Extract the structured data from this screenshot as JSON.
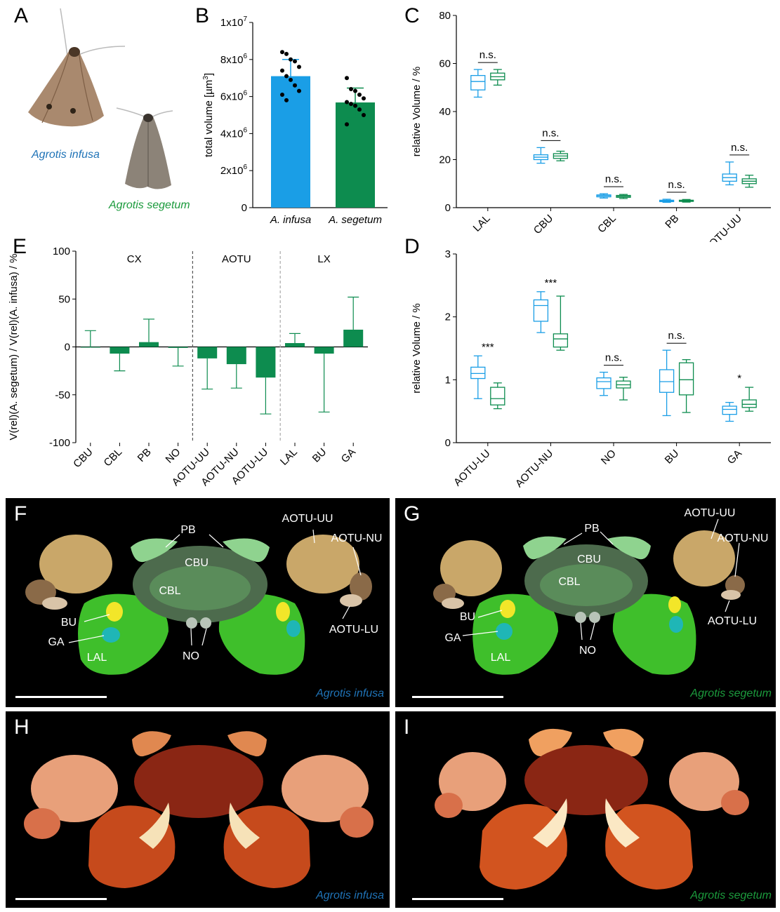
{
  "panels": {
    "A": {
      "letter": "A",
      "species_1": "Agrotis infusa",
      "species_2": "Agrotis segetum"
    },
    "B": {
      "letter": "B"
    },
    "C": {
      "letter": "C"
    },
    "D": {
      "letter": "D"
    },
    "E": {
      "letter": "E",
      "groups": [
        "CX",
        "AOTU",
        "LX"
      ]
    },
    "F": {
      "letter": "F",
      "species": "Agrotis infusa",
      "labels": {
        "pb": "PB",
        "cbu": "CBU",
        "cbl": "CBL",
        "aotu_uu": "AOTU-UU",
        "aotu_nu": "AOTU-NU",
        "aotu_lu": "AOTU-LU",
        "bu": "BU",
        "ga": "GA",
        "lal": "LAL",
        "no": "NO"
      }
    },
    "G": {
      "letter": "G",
      "species": "Agrotis segetum",
      "labels": {
        "pb": "PB",
        "cbu": "CBU",
        "cbl": "CBL",
        "aotu_uu": "AOTU-UU",
        "aotu_nu": "AOTU-NU",
        "aotu_lu": "AOTU-LU",
        "bu": "BU",
        "ga": "GA",
        "lal": "LAL",
        "no": "NO"
      }
    },
    "H": {
      "letter": "H",
      "species": "Agrotis infusa"
    },
    "I": {
      "letter": "I",
      "species": "Agrotis segetum"
    }
  },
  "colors": {
    "infusa": "#1a9ee6",
    "segetum": "#0d8c4f",
    "infusa_text": "#1f73b7",
    "segetum_text": "#1b9a3c"
  },
  "chart_data": [
    {
      "panel": "B",
      "type": "bar",
      "categories": [
        "A. infusa",
        "A. segetum"
      ],
      "values": [
        7100000,
        5680000
      ],
      "errors": [
        900000,
        780000
      ],
      "points": [
        [
          8400000,
          8300000,
          8000000,
          7900000,
          7600000,
          7400000,
          7100000,
          6900000,
          6600000,
          6300000,
          6100000,
          5800000
        ],
        [
          7000000,
          6400000,
          6300000,
          6100000,
          5900000,
          5700000,
          5600000,
          5500000,
          5300000,
          5000000,
          4500000
        ]
      ],
      "ylabel_main": "total volume [µm",
      "ylabel_sup": "3",
      "ylabel_end": "]",
      "ylim": [
        0,
        10000000
      ],
      "yticks": [
        {
          "v": 0,
          "base": "0",
          "exp": ""
        },
        {
          "v": 2000000,
          "base": "2x10",
          "exp": "6"
        },
        {
          "v": 4000000,
          "base": "4x10",
          "exp": "6"
        },
        {
          "v": 6000000,
          "base": "6x10",
          "exp": "6"
        },
        {
          "v": 8000000,
          "base": "8x10",
          "exp": "6"
        },
        {
          "v": 10000000,
          "base": "1x10",
          "exp": "7"
        }
      ]
    },
    {
      "panel": "C",
      "type": "box",
      "categories": [
        "LAL",
        "CBU",
        "CBL",
        "PB",
        "AOTU-UU"
      ],
      "series": [
        {
          "name": "A. infusa",
          "boxes": [
            [
              46,
              49,
              52.5,
              55,
              57.5
            ],
            [
              18.5,
              20,
              21,
              22,
              25
            ],
            [
              4,
              4.5,
              5,
              5.3,
              5.8
            ],
            [
              2.2,
              2.5,
              2.8,
              3.1,
              3.5
            ],
            [
              9.5,
              11,
              12.5,
              14,
              19
            ]
          ]
        },
        {
          "name": "A. segetum",
          "boxes": [
            [
              51,
              53.2,
              54.5,
              56,
              57.5
            ],
            [
              19.5,
              20.5,
              21.5,
              22.5,
              23.5
            ],
            [
              3.8,
              4.3,
              4.7,
              5.1,
              5.5
            ],
            [
              2.3,
              2.6,
              2.9,
              3.1,
              3.4
            ],
            [
              8.5,
              10,
              11,
              12,
              13.5
            ]
          ]
        }
      ],
      "significance": [
        "n.s.",
        "n.s.",
        "n.s.",
        "n.s.",
        "n.s."
      ],
      "ylabel": "relative Volume / %",
      "ylim": [
        0,
        80
      ],
      "yticks": [
        0,
        20,
        40,
        60,
        80
      ]
    },
    {
      "panel": "D",
      "type": "box",
      "categories": [
        "AOTU-LU",
        "AOTU-NU",
        "NO",
        "BU",
        "GA"
      ],
      "series": [
        {
          "name": "A. infusa",
          "boxes": [
            [
              0.7,
              1.02,
              1.1,
              1.2,
              1.38
            ],
            [
              1.75,
              1.93,
              2.18,
              2.27,
              2.4
            ],
            [
              0.75,
              0.86,
              0.97,
              1.03,
              1.12
            ],
            [
              0.43,
              0.8,
              0.97,
              1.16,
              1.47
            ],
            [
              0.34,
              0.45,
              0.53,
              0.58,
              0.64
            ]
          ]
        },
        {
          "name": "A. segetum",
          "boxes": [
            [
              0.54,
              0.6,
              0.7,
              0.88,
              0.95
            ],
            [
              1.47,
              1.52,
              1.65,
              1.73,
              2.33
            ],
            [
              0.68,
              0.87,
              0.92,
              0.98,
              1.04
            ],
            [
              0.48,
              0.76,
              1.0,
              1.27,
              1.32
            ],
            [
              0.5,
              0.56,
              0.61,
              0.68,
              0.88
            ]
          ]
        }
      ],
      "significance": [
        "***",
        "***",
        "n.s.",
        "n.s.",
        "*"
      ],
      "ylabel": "relative Volume / %",
      "ylim": [
        0,
        3
      ],
      "yticks": [
        0,
        1,
        2,
        3
      ]
    },
    {
      "panel": "E",
      "type": "bar",
      "categories": [
        "CBU",
        "CBL",
        "PB",
        "NO",
        "AOTU-UU",
        "AOTU-NU",
        "AOTU-LU",
        "LAL",
        "BU",
        "GA"
      ],
      "values": [
        0,
        -7,
        5,
        -1,
        -12,
        -18,
        -32,
        4,
        -7,
        18
      ],
      "error_ends": [
        17,
        -25,
        29,
        -20,
        -44,
        -43,
        -70,
        14,
        -68,
        52
      ],
      "ylim": [
        -100,
        100
      ],
      "yticks": [
        -100,
        -50,
        0,
        50,
        100
      ],
      "ylabel": "V(rel)(A. segetum) / V(rel)(A. infusa) / %"
    }
  ]
}
